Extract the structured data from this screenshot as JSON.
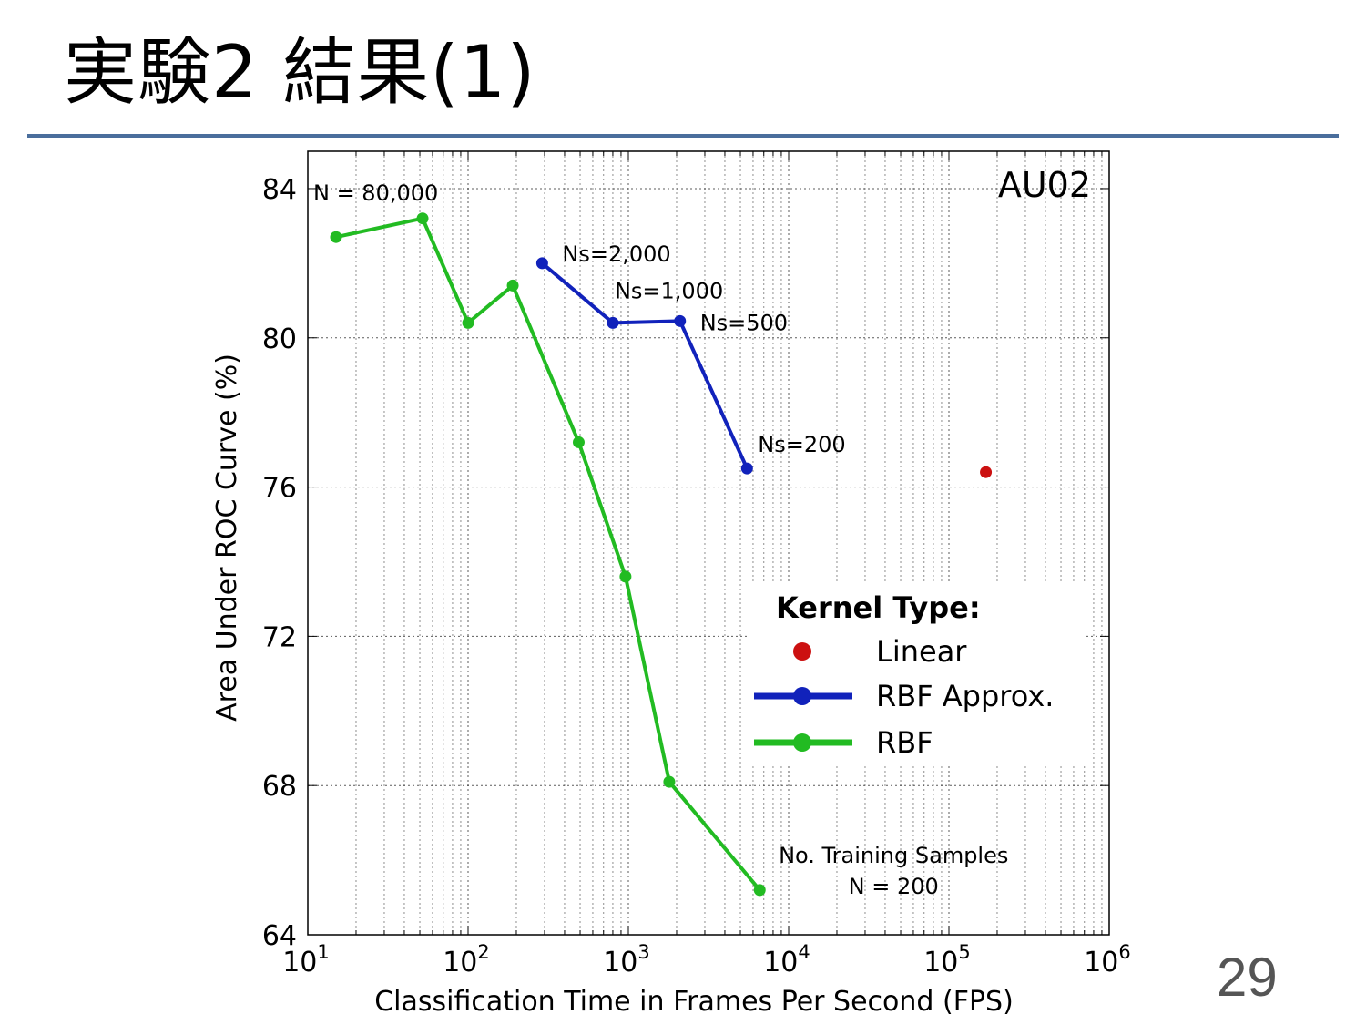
{
  "slide": {
    "title": "実験2 結果(1)",
    "page_number": "29"
  },
  "chart_data": {
    "type": "line",
    "title": "AU02",
    "xlabel": "Classification Time in Frames Per Second (FPS)",
    "ylabel": "Area Under ROC Curve (%)",
    "x_scale": "log",
    "xlim": [
      10,
      1000000
    ],
    "ylim": [
      64,
      85
    ],
    "x_ticks": [
      {
        "value": 10,
        "base": "10",
        "exp": "1"
      },
      {
        "value": 100,
        "base": "10",
        "exp": "2"
      },
      {
        "value": 1000,
        "base": "10",
        "exp": "3"
      },
      {
        "value": 10000,
        "base": "10",
        "exp": "4"
      },
      {
        "value": 100000,
        "base": "10",
        "exp": "5"
      },
      {
        "value": 1000000,
        "base": "10",
        "exp": "6"
      }
    ],
    "y_ticks": [
      64,
      68,
      72,
      76,
      80,
      84
    ],
    "grid": true,
    "legend": {
      "title": "Kernel Type:",
      "placement": "lower-right"
    },
    "series": [
      {
        "name": "Linear",
        "color": "#cc1111",
        "style": "marker",
        "points": [
          [
            170000,
            76.4
          ]
        ]
      },
      {
        "name": "RBF Approx.",
        "color": "#1122bb",
        "style": "line-marker",
        "points": [
          [
            290,
            82.0
          ],
          [
            800,
            80.4
          ],
          [
            2100,
            80.45
          ],
          [
            5500,
            76.5
          ]
        ]
      },
      {
        "name": "RBF",
        "color": "#22bb22",
        "style": "line-marker",
        "points": [
          [
            15,
            82.7
          ],
          [
            52,
            83.2
          ],
          [
            100,
            80.4
          ],
          [
            190,
            81.4
          ],
          [
            490,
            77.2
          ],
          [
            960,
            73.6
          ],
          [
            1800,
            68.1
          ],
          [
            6600,
            65.2
          ]
        ]
      }
    ],
    "annotations": [
      {
        "text": "N = 80,000",
        "series": "RBF",
        "point": 0
      },
      {
        "text": "Ns=2,000",
        "series": "RBF Approx.",
        "point": 0
      },
      {
        "text": "Ns=1,000",
        "series": "RBF Approx.",
        "point": 1
      },
      {
        "text": "Ns=500",
        "series": "RBF Approx.",
        "point": 2
      },
      {
        "text": "Ns=200",
        "series": "RBF Approx.",
        "point": 3
      },
      {
        "text": "No. Training Samples",
        "series": "RBF",
        "point": 7
      },
      {
        "text": "N = 200",
        "series": "RBF",
        "point": 7
      }
    ]
  }
}
